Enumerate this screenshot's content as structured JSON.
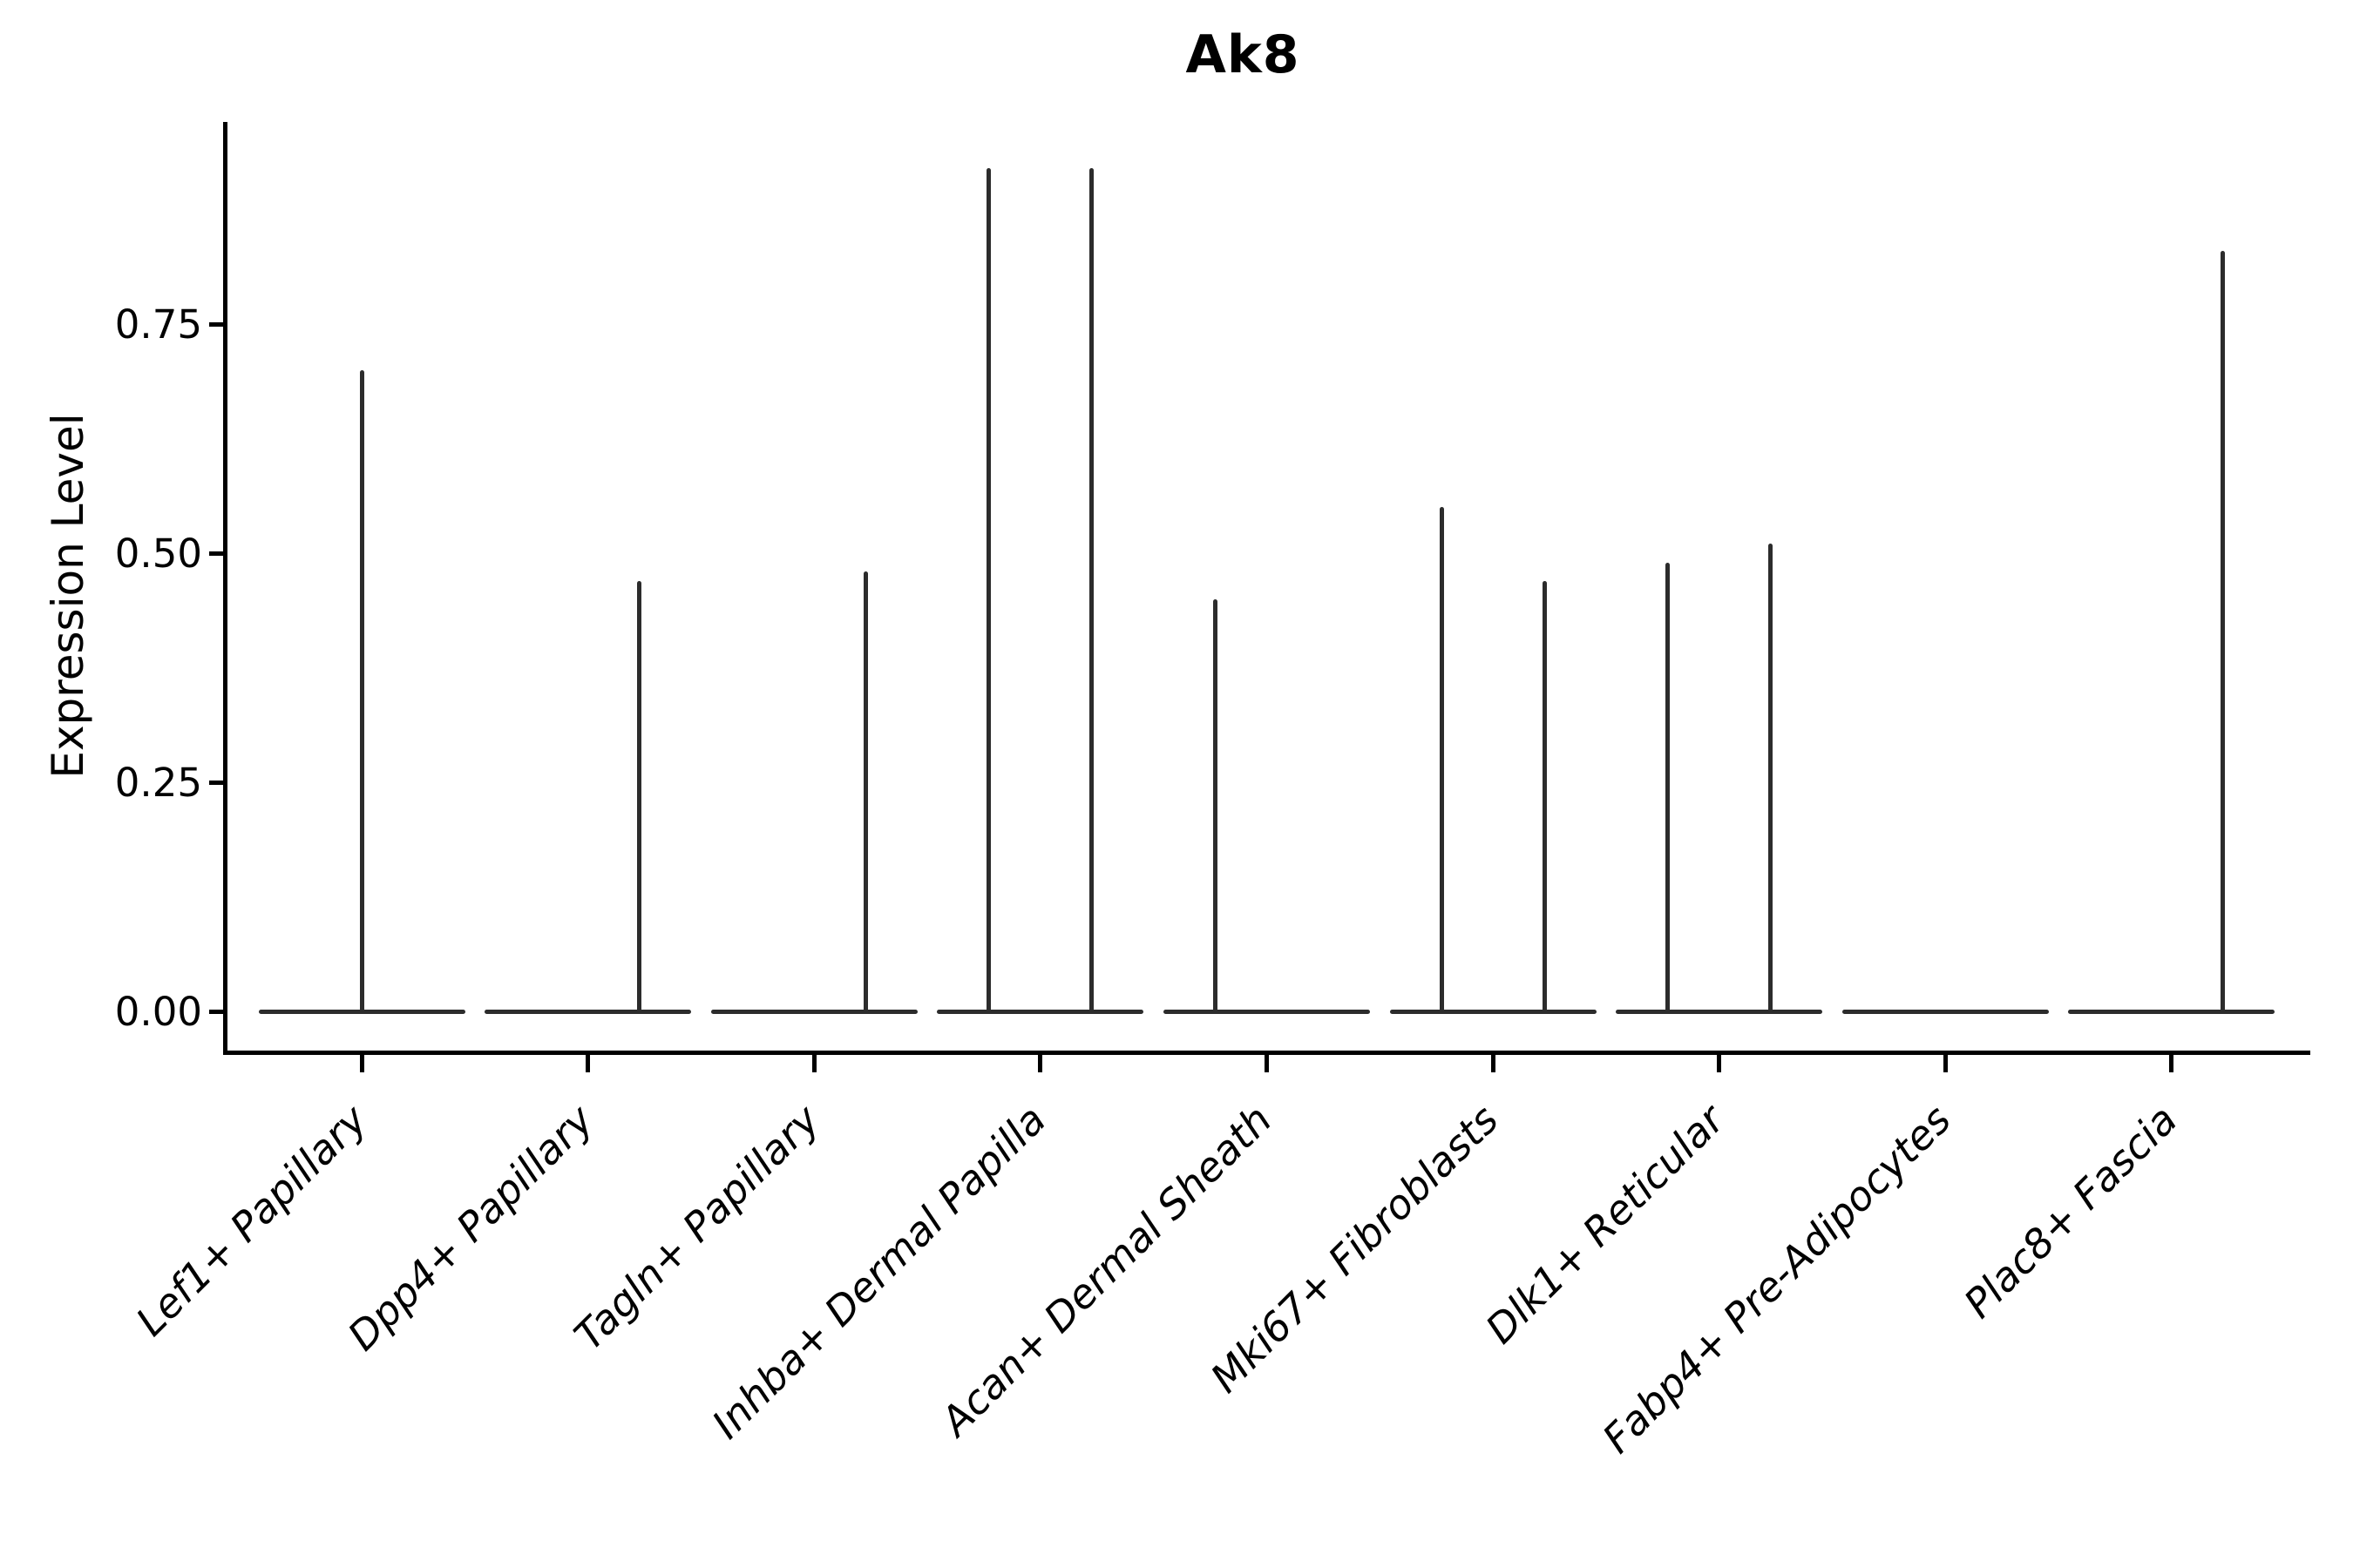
{
  "chart_data": {
    "type": "violin",
    "title": "Ak8",
    "ylabel": "Expression Level",
    "xlabel": "",
    "yticks": [
      "0.00",
      "0.25",
      "0.50",
      "0.75"
    ],
    "ytick_values": [
      0.0,
      0.25,
      0.5,
      0.75
    ],
    "ylim": [
      -0.045,
      0.97
    ],
    "grid": false,
    "legend": "none",
    "categories": [
      "Lef1+ Papillary",
      "Dpp4+ Papillary",
      "Tagln+ Papillary",
      "Inhba+ Dermal Papilla",
      "Acan+ Dermal Sheath",
      "Mki67+ Fibroblasts",
      "Dlk1+ Reticular",
      "Fabp4+ Pre-Adipocytes",
      "Plac8+ Fascia"
    ],
    "violins": [
      {
        "category": "Lef1+ Papillary",
        "baseline_value": 0.0,
        "spikes": [
          {
            "position": "center",
            "value": 0.7
          }
        ]
      },
      {
        "category": "Dpp4+ Papillary",
        "baseline_value": 0.0,
        "spikes": [
          {
            "position": "right",
            "value": 0.47
          }
        ]
      },
      {
        "category": "Tagln+ Papillary",
        "baseline_value": 0.0,
        "spikes": [
          {
            "position": "right",
            "value": 0.48
          }
        ]
      },
      {
        "category": "Inhba+ Dermal Papilla",
        "baseline_value": 0.0,
        "spikes": [
          {
            "position": "left",
            "value": 0.92
          },
          {
            "position": "right",
            "value": 0.92
          }
        ]
      },
      {
        "category": "Acan+ Dermal Sheath",
        "baseline_value": 0.0,
        "spikes": [
          {
            "position": "left",
            "value": 0.45
          }
        ]
      },
      {
        "category": "Mki67+ Fibroblasts",
        "baseline_value": 0.0,
        "spikes": [
          {
            "position": "left",
            "value": 0.55
          },
          {
            "position": "right",
            "value": 0.47
          }
        ]
      },
      {
        "category": "Dlk1+ Reticular",
        "baseline_value": 0.0,
        "spikes": [
          {
            "position": "left",
            "value": 0.49
          },
          {
            "position": "right",
            "value": 0.51
          }
        ]
      },
      {
        "category": "Fabp4+ Pre-Adipocytes",
        "baseline_value": 0.0,
        "spikes": []
      },
      {
        "category": "Plac8+ Fascia",
        "baseline_value": 0.0,
        "spikes": [
          {
            "position": "right",
            "value": 0.83
          }
        ]
      }
    ],
    "colors": {
      "violin_line": "#2c2c2c",
      "axis": "#000000",
      "text": "#000000",
      "background": "#ffffff"
    }
  }
}
